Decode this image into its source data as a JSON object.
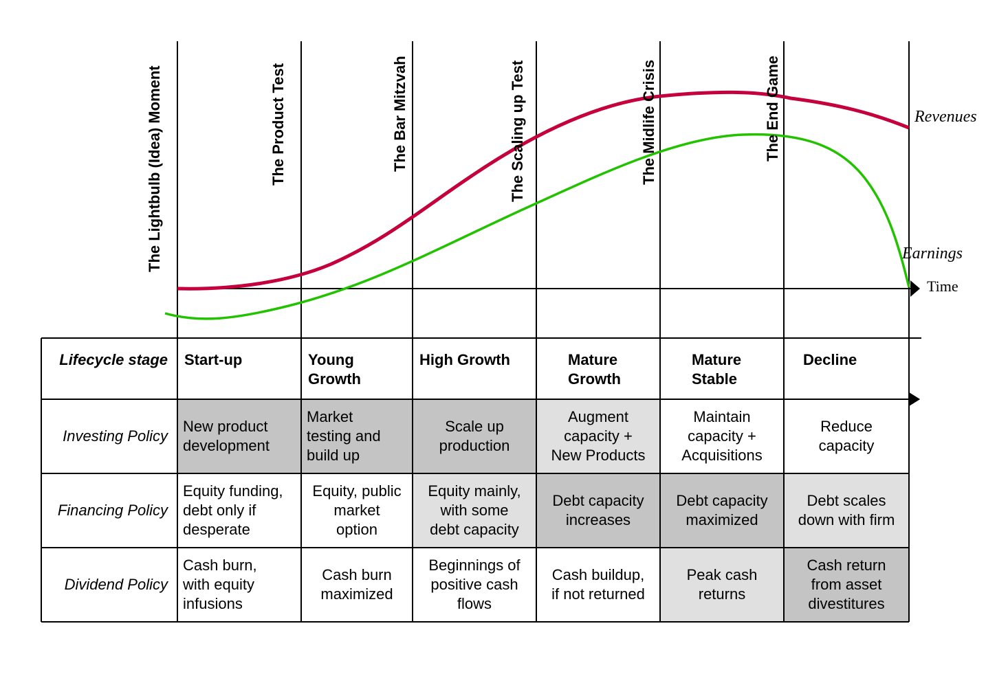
{
  "milestones": [
    "The Lightbulb (Idea) Moment",
    "The Product Test",
    "The Bar Mitzvah",
    "The Scaling up Test",
    "The Midlife Crisis",
    "The End Game"
  ],
  "curves": {
    "revenues_label": "Revenues",
    "earnings_label": "Earnings",
    "revenues_color": "#c4003d",
    "earnings_color": "#22c200"
  },
  "axis": {
    "time_label": "Time"
  },
  "table": {
    "rows": [
      {
        "header": "Lifecycle stage",
        "cells": [
          "Start-up",
          "Young\nGrowth",
          "High Growth",
          "Mature\nGrowth",
          "Mature\nStable",
          "Decline"
        ],
        "shades": [
          "none",
          "none",
          "none",
          "none",
          "none",
          "none"
        ]
      },
      {
        "header": "Investing Policy",
        "cells": [
          "New product\ndevelopment",
          "Market\ntesting and\nbuild up",
          "Scale up\nproduction",
          "Augment\ncapacity +\nNew Products",
          "Maintain\ncapacity +\nAcquisitions",
          "Reduce\ncapacity"
        ],
        "shades": [
          "dark",
          "dark",
          "dark",
          "light",
          "none",
          "none"
        ]
      },
      {
        "header": "Financing Policy",
        "cells": [
          "Equity funding,\ndebt only if\ndesperate",
          "Equity, public\nmarket\noption",
          "Equity mainly,\nwith some\ndebt capacity",
          "Debt capacity\nincreases",
          "Debt capacity\nmaximized",
          "Debt scales\ndown with firm"
        ],
        "shades": [
          "none",
          "none",
          "light",
          "dark",
          "dark",
          "light"
        ]
      },
      {
        "header": "Dividend Policy",
        "cells": [
          "Cash burn,\nwith equity\ninfusions",
          "Cash burn\nmaximized",
          "Beginnings of\npositive cash\nflows",
          "Cash buildup,\nif not returned",
          "Peak cash\nreturns",
          "Cash return\nfrom asset\ndivestitures"
        ],
        "shades": [
          "none",
          "none",
          "none",
          "none",
          "light",
          "dark"
        ]
      }
    ],
    "shade_colors": {
      "none": "#ffffff",
      "light": "#e0e0e0",
      "dark": "#c4c4c4"
    }
  }
}
